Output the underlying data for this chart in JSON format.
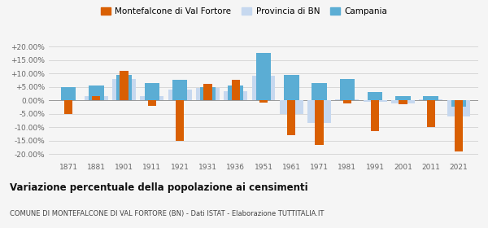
{
  "years": [
    1871,
    1881,
    1901,
    1911,
    1921,
    1931,
    1936,
    1951,
    1961,
    1971,
    1981,
    1991,
    2001,
    2011,
    2021
  ],
  "montefalcone": [
    -5.0,
    1.5,
    11.0,
    -2.0,
    -15.0,
    6.0,
    7.5,
    -0.8,
    -13.0,
    -16.5,
    -1.0,
    -11.5,
    -1.5,
    -10.0,
    -19.0
  ],
  "provincia_bn": [
    0.0,
    1.5,
    8.0,
    1.5,
    4.0,
    4.5,
    3.5,
    9.0,
    -5.0,
    -8.5,
    0.5,
    -0.5,
    -1.0,
    0.5,
    -6.0
  ],
  "campania": [
    5.0,
    5.5,
    9.5,
    6.5,
    7.5,
    5.0,
    5.5,
    17.5,
    9.5,
    6.5,
    8.0,
    3.0,
    1.5,
    1.5,
    -2.5
  ],
  "color_montefalcone": "#d95f02",
  "color_provincia": "#c6d8ef",
  "color_campania": "#5badd4",
  "ylim": [
    -22,
    22
  ],
  "yticks": [
    -20,
    -15,
    -10,
    -5,
    0,
    5,
    10,
    15,
    20
  ],
  "title": "Variazione percentuale della popolazione ai censimenti",
  "subtitle": "COMUNE DI MONTEFALCONE DI VAL FORTORE (BN) - Dati ISTAT - Elaborazione TUTTITALIA.IT",
  "legend_labels": [
    "Montefalcone di Val Fortore",
    "Provincia di BN",
    "Campania"
  ],
  "background_color": "#f5f5f5"
}
